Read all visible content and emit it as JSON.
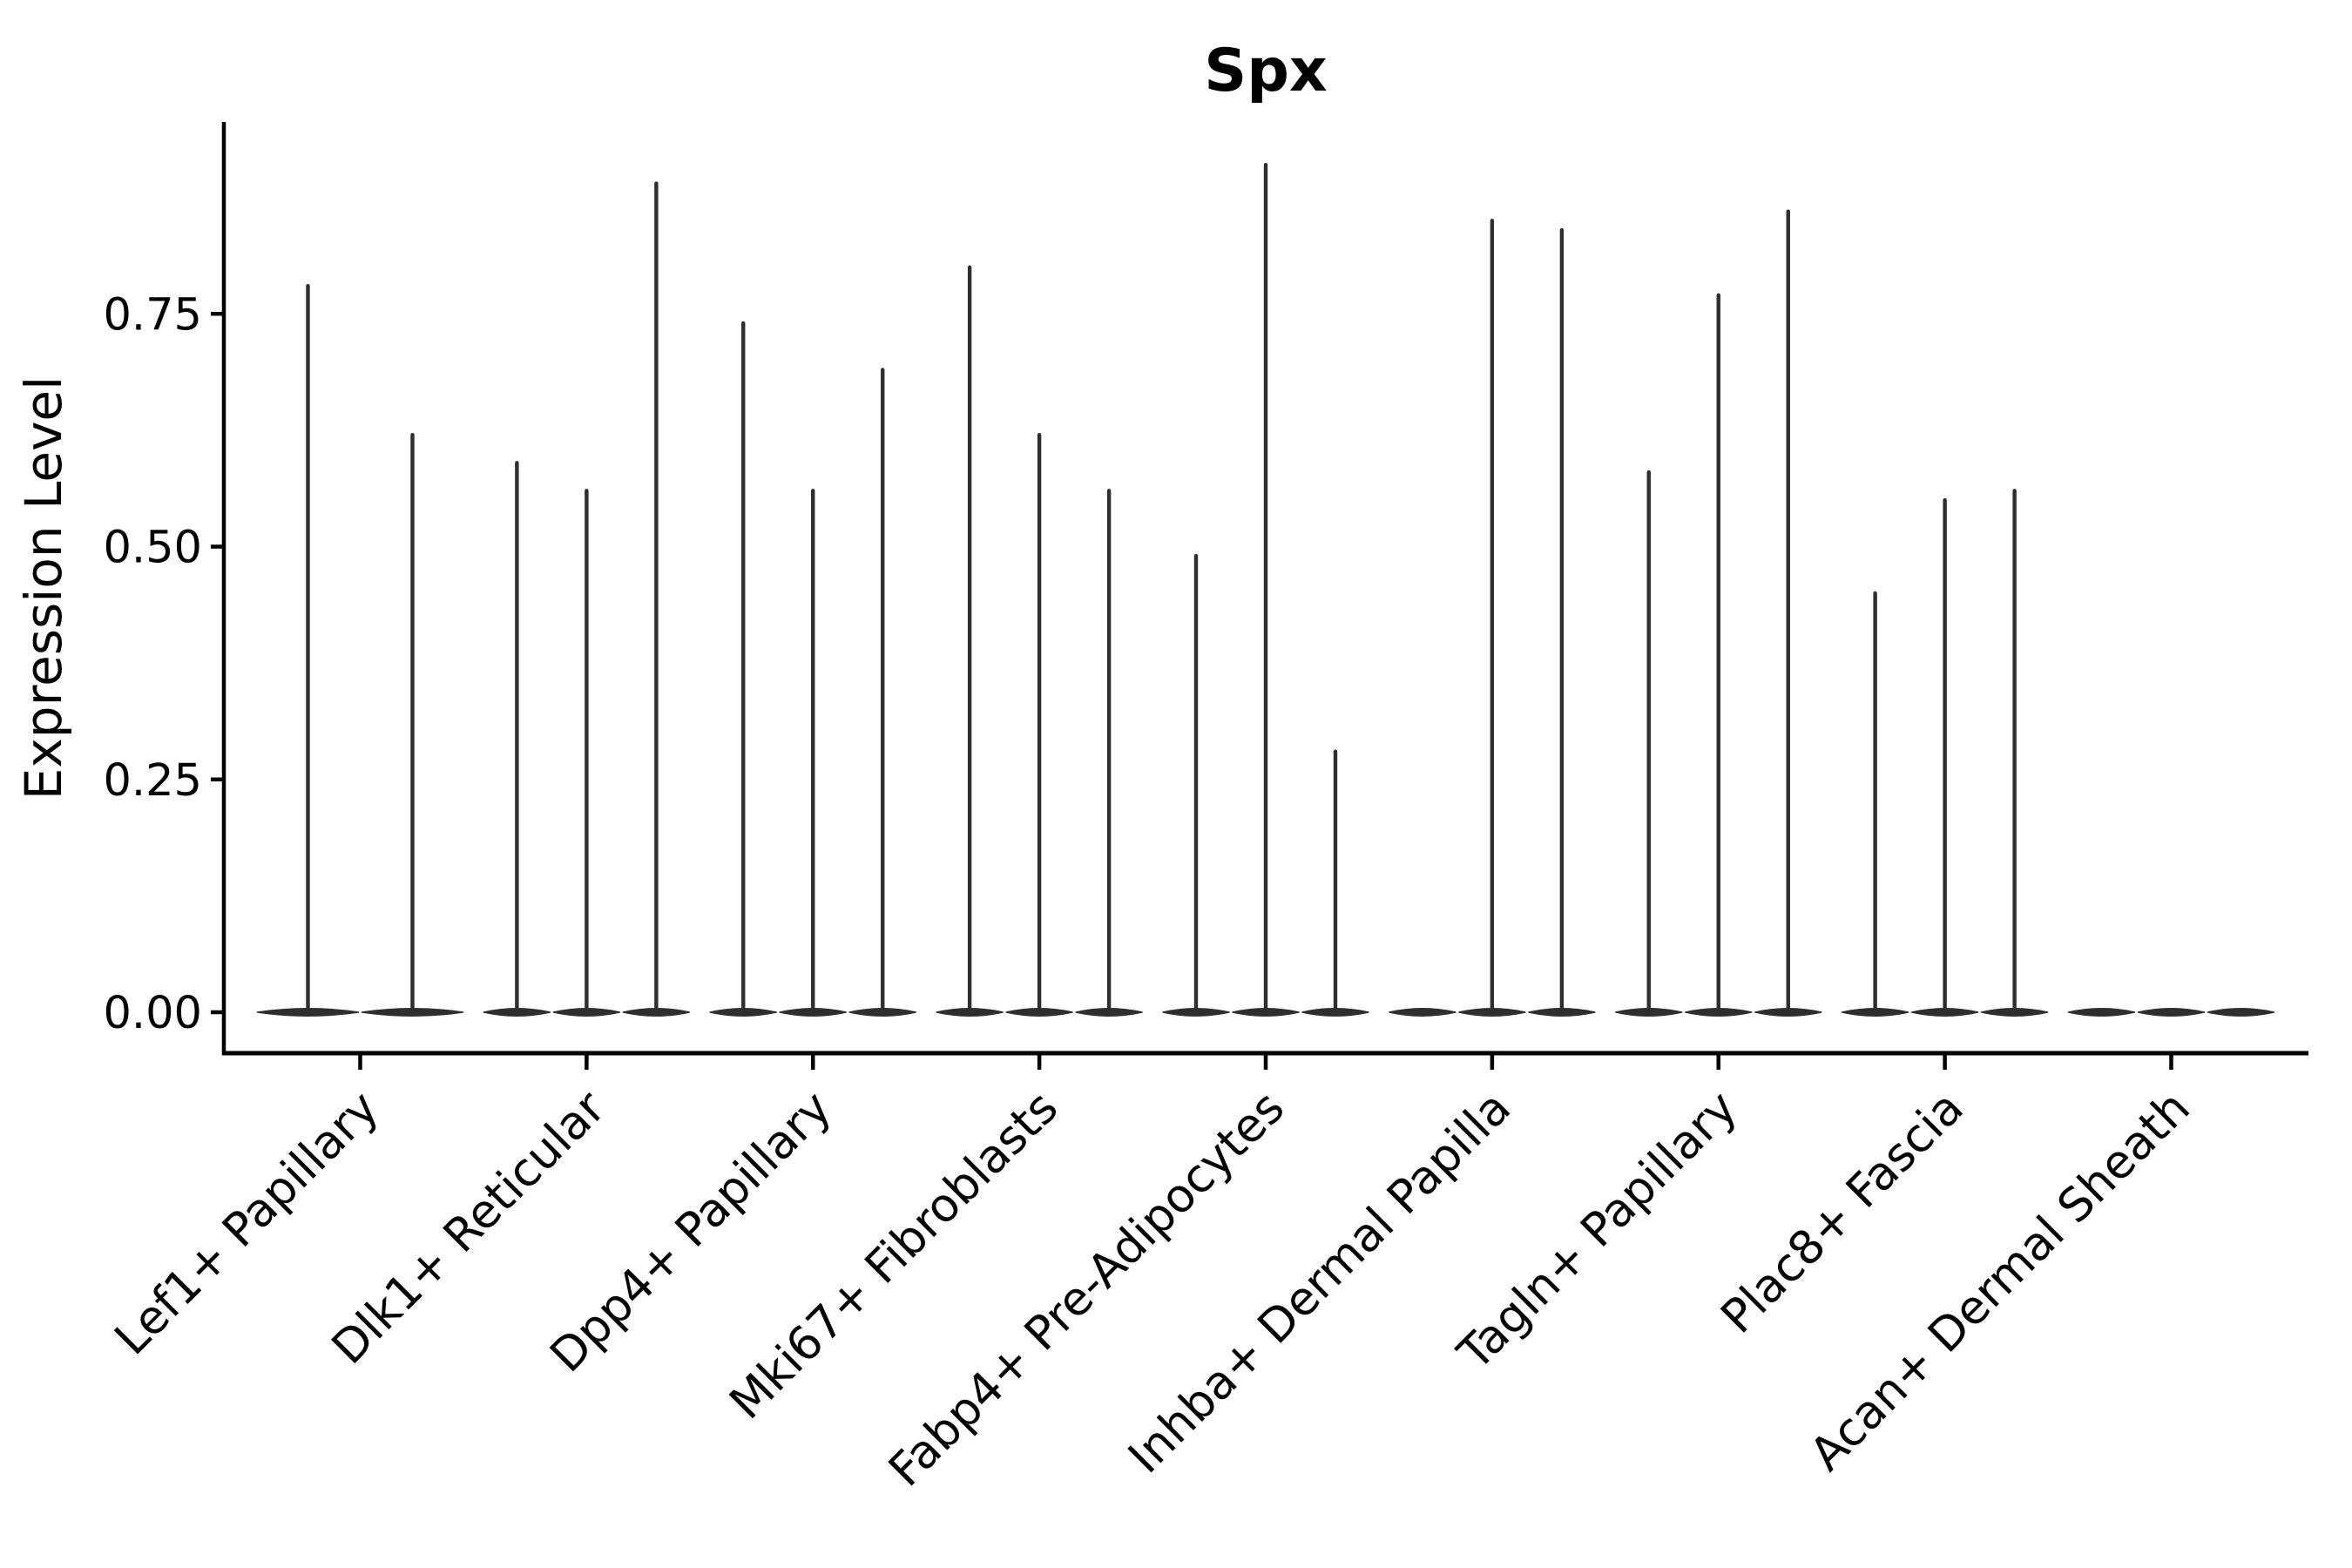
{
  "page": {
    "background_color": "#ffffff"
  },
  "chart_data": {
    "type": "violin",
    "title": "Spx",
    "ylabel": "Expression Level",
    "xlabel": "",
    "grid": false,
    "legend": "none",
    "ylim": [
      -0.046,
      0.956
    ],
    "ytick_labels": [
      "0.00",
      "0.25",
      "0.50",
      "0.75"
    ],
    "ytick_values": [
      0.0,
      0.25,
      0.5,
      0.75
    ],
    "violin_style": "narrow spikes rising from a flat dense base at zero expression",
    "colors": {
      "violin": "#2e2e2e",
      "spine": "#000000",
      "text": "#000000"
    },
    "categories": [
      {
        "label": "Lef1+ Papillary",
        "violin_peaks": [
          0.78,
          0.62
        ]
      },
      {
        "label": "Dlk1+ Reticular",
        "violin_peaks": [
          0.59,
          0.56,
          0.89
        ]
      },
      {
        "label": "Dpp4+ Papillary",
        "violin_peaks": [
          0.74,
          0.56,
          0.69
        ]
      },
      {
        "label": "Mki67+ Fibroblasts",
        "violin_peaks": [
          0.8,
          0.62,
          0.56
        ]
      },
      {
        "label": "Fabp4+ Pre-Adipocytes",
        "violin_peaks": [
          0.49,
          0.91,
          0.28
        ]
      },
      {
        "label": "Inhba+ Dermal Papilla",
        "violin_peaks": [
          null,
          0.85,
          0.84
        ]
      },
      {
        "label": "Tagln+ Papillary",
        "violin_peaks": [
          0.58,
          0.77,
          0.86
        ]
      },
      {
        "label": "Plac8+ Fascia",
        "violin_peaks": [
          0.45,
          0.55,
          0.56
        ]
      },
      {
        "label": "Acan+ Dermal Sheath",
        "violin_peaks": [
          null,
          null,
          null
        ]
      }
    ]
  }
}
